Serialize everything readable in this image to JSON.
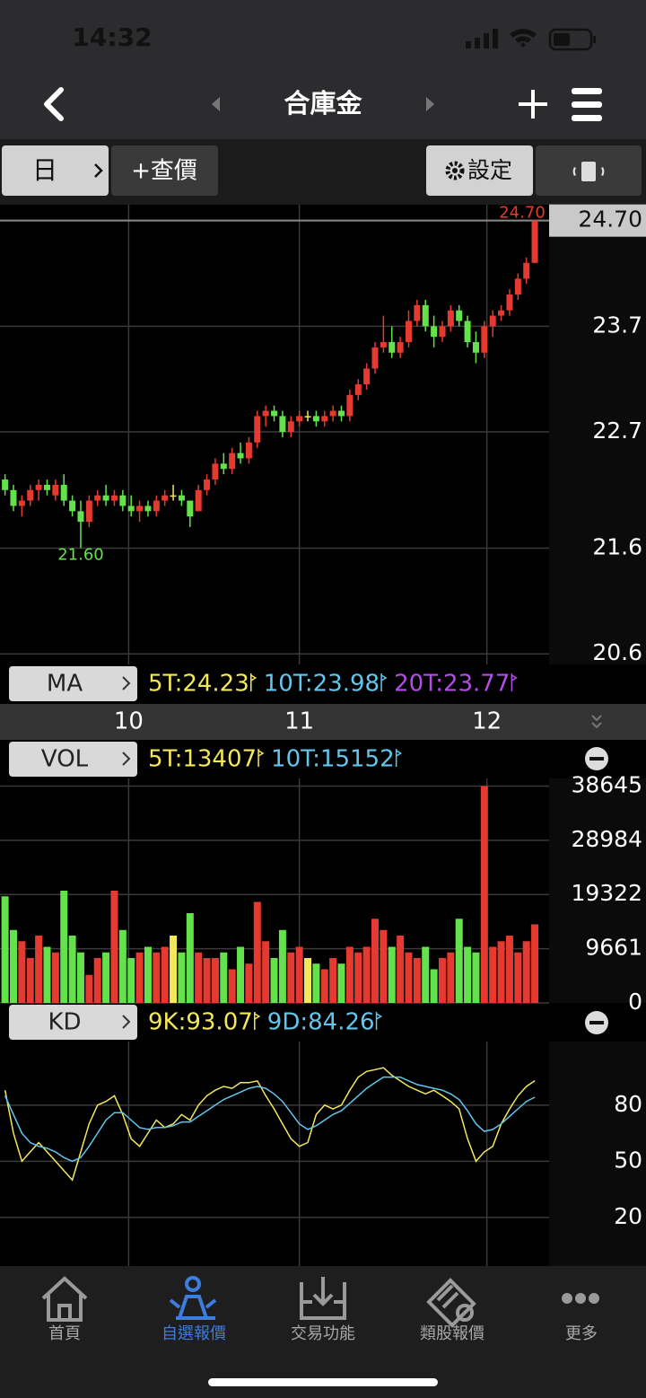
{
  "status_bar": {
    "time": "14:32"
  },
  "nav": {
    "title": "合庫金"
  },
  "toolbar": {
    "period": "日",
    "quote": "+查價",
    "settings": "設定"
  },
  "chart_data": [
    {
      "type": "candlestick",
      "label": "MA",
      "indicators": [
        {
          "text": "5T:24.23",
          "color": "#f3e85a"
        },
        {
          "text": "10T:23.98",
          "color": "#62c6ec"
        },
        {
          "text": "20T:23.77",
          "color": "#b34de6"
        }
      ],
      "open": [
        22.25,
        22.15,
        22.0,
        22.05,
        22.15,
        22.2,
        22.1,
        22.2,
        22.05,
        21.95,
        21.85,
        22.05,
        22.1,
        22.05,
        22.1,
        22.0,
        21.95,
        22.0,
        21.95,
        22.05,
        22.1,
        22.1,
        22.05,
        21.95,
        22.15,
        22.25,
        22.4,
        22.35,
        22.5,
        22.45,
        22.6,
        22.85,
        22.9,
        22.85,
        22.7,
        22.8,
        22.85,
        22.85,
        22.8,
        22.85,
        22.9,
        22.85,
        23.05,
        23.15,
        23.3,
        23.5,
        23.55,
        23.45,
        23.55,
        23.75,
        23.9,
        23.7,
        23.6,
        23.7,
        23.85,
        23.75,
        23.55,
        23.45,
        23.7,
        23.8,
        23.85,
        24.0,
        24.15,
        24.3
      ],
      "high": [
        22.3,
        22.2,
        22.1,
        22.2,
        22.25,
        22.25,
        22.25,
        22.3,
        22.1,
        22.05,
        22.1,
        22.15,
        22.2,
        22.15,
        22.15,
        22.1,
        22.05,
        22.05,
        22.1,
        22.15,
        22.2,
        22.15,
        22.05,
        22.2,
        22.3,
        22.45,
        22.5,
        22.55,
        22.6,
        22.65,
        22.9,
        22.95,
        22.95,
        22.9,
        22.85,
        22.9,
        22.9,
        22.9,
        22.9,
        22.95,
        22.95,
        23.1,
        23.2,
        23.35,
        23.55,
        23.8,
        23.7,
        23.6,
        23.85,
        23.95,
        23.95,
        23.8,
        23.75,
        23.9,
        23.9,
        23.8,
        23.65,
        23.75,
        23.85,
        23.9,
        24.05,
        24.2,
        24.35,
        24.7
      ],
      "low": [
        22.1,
        21.95,
        21.9,
        22.0,
        22.05,
        22.1,
        22.05,
        22.0,
        21.9,
        21.6,
        21.8,
        22.0,
        22.0,
        22.0,
        21.95,
        21.9,
        21.85,
        21.9,
        21.9,
        22.0,
        22.05,
        22.0,
        21.8,
        21.95,
        22.1,
        22.2,
        22.3,
        22.3,
        22.4,
        22.4,
        22.55,
        22.75,
        22.8,
        22.65,
        22.65,
        22.75,
        22.8,
        22.75,
        22.75,
        22.8,
        22.8,
        22.8,
        23.0,
        23.1,
        23.25,
        23.45,
        23.4,
        23.4,
        23.5,
        23.7,
        23.65,
        23.5,
        23.55,
        23.65,
        23.7,
        23.5,
        23.35,
        23.4,
        23.6,
        23.75,
        23.8,
        23.95,
        24.1,
        24.3
      ],
      "close": [
        22.15,
        22.0,
        22.05,
        22.15,
        22.2,
        22.15,
        22.2,
        22.05,
        21.95,
        21.85,
        22.05,
        22.1,
        22.05,
        22.1,
        22.0,
        21.95,
        22.0,
        21.95,
        22.05,
        22.1,
        22.1,
        22.05,
        21.9,
        22.15,
        22.25,
        22.4,
        22.35,
        22.5,
        22.45,
        22.6,
        22.85,
        22.9,
        22.85,
        22.7,
        22.8,
        22.85,
        22.85,
        22.8,
        22.85,
        22.9,
        22.85,
        23.05,
        23.15,
        23.3,
        23.5,
        23.55,
        23.45,
        23.55,
        23.75,
        23.9,
        23.7,
        23.6,
        23.7,
        23.85,
        23.75,
        23.55,
        23.45,
        23.7,
        23.8,
        23.85,
        24.0,
        24.15,
        24.3,
        24.7
      ],
      "up_color": "#e53a2f",
      "down_color": "#63e24c",
      "flat_color": "#f3e85a",
      "xlim": [
        -0.6,
        64.7
      ],
      "xticks": [
        {
          "value": 14.7,
          "label": "10"
        },
        {
          "value": 35,
          "label": "11"
        },
        {
          "value": 57.3,
          "label": "12"
        }
      ],
      "ylim": [
        20.5,
        24.85
      ],
      "yticks": [
        {
          "value": 24.7,
          "label": "24.70"
        },
        23.7,
        22.7,
        21.6,
        20.6
      ],
      "annotations": [
        {
          "index": 9,
          "value": 21.6,
          "label": "21.60",
          "color": "#63e24c"
        },
        {
          "index": 63,
          "value": 24.7,
          "label": "24.70",
          "color": "#e53a2f"
        }
      ],
      "grid": true
    },
    {
      "type": "bar",
      "label": "VOL",
      "indicators": [
        {
          "text": "5T:13407",
          "color": "#f3e85a"
        },
        {
          "text": "10T:15152",
          "color": "#62c6ec"
        }
      ],
      "values": [
        19000,
        13000,
        11000,
        8000,
        12000,
        10000,
        9000,
        20000,
        12000,
        9000,
        5000,
        8000,
        9000,
        20000,
        13000,
        8000,
        9000,
        10000,
        9000,
        10000,
        12000,
        9000,
        16000,
        9000,
        8000,
        8000,
        9000,
        6000,
        10000,
        7000,
        18000,
        11000,
        8000,
        13000,
        9000,
        10000,
        8000,
        7000,
        6000,
        8000,
        7000,
        10000,
        9000,
        10000,
        15000,
        13000,
        10000,
        12000,
        9000,
        8000,
        10000,
        6000,
        8000,
        9000,
        15000,
        10000,
        9000,
        38645,
        10000,
        11000,
        12000,
        9000,
        11000,
        14000
      ],
      "ylim": [
        0,
        40000
      ],
      "yticks": [
        38645,
        28984,
        19322,
        9661,
        0
      ],
      "grid": true
    },
    {
      "type": "line",
      "label": "KD",
      "indicators": [
        {
          "text": "9K:93.07",
          "color": "#f3e85a"
        },
        {
          "text": "9D:84.26",
          "color": "#62c6ec"
        }
      ],
      "series": [
        {
          "color": "#f3e85a",
          "values": [
            88,
            65,
            50,
            55,
            60,
            55,
            50,
            45,
            40,
            55,
            70,
            80,
            82,
            85,
            75,
            62,
            58,
            65,
            72,
            68,
            70,
            75,
            72,
            80,
            85,
            88,
            90,
            89,
            92,
            92,
            93,
            85,
            78,
            70,
            62,
            58,
            60,
            75,
            80,
            78,
            80,
            88,
            95,
            98,
            99,
            100,
            96,
            93,
            90,
            88,
            86,
            88,
            85,
            82,
            78,
            62,
            50,
            55,
            58,
            70,
            78,
            85,
            90,
            93.07
          ]
        },
        {
          "color": "#62c6ec",
          "values": [
            85,
            75,
            65,
            60,
            58,
            57,
            55,
            52,
            50,
            52,
            58,
            65,
            72,
            76,
            76,
            72,
            68,
            67,
            68,
            68,
            69,
            71,
            71,
            74,
            77,
            80,
            83,
            85,
            87,
            89,
            90,
            89,
            86,
            82,
            76,
            70,
            67,
            69,
            72,
            75,
            77,
            81,
            85,
            89,
            92,
            95,
            95,
            95,
            93,
            91,
            90,
            89,
            88,
            86,
            83,
            77,
            70,
            66,
            67,
            70,
            74,
            78,
            82,
            84.26
          ]
        }
      ],
      "ylim": [
        -6,
        114
      ],
      "yticks": [
        80,
        50,
        20
      ],
      "grid": true
    }
  ],
  "tab_bar": {
    "items": [
      "首頁",
      "自選報價",
      "交易功能",
      "類股報價",
      "更多"
    ],
    "active": 1
  }
}
